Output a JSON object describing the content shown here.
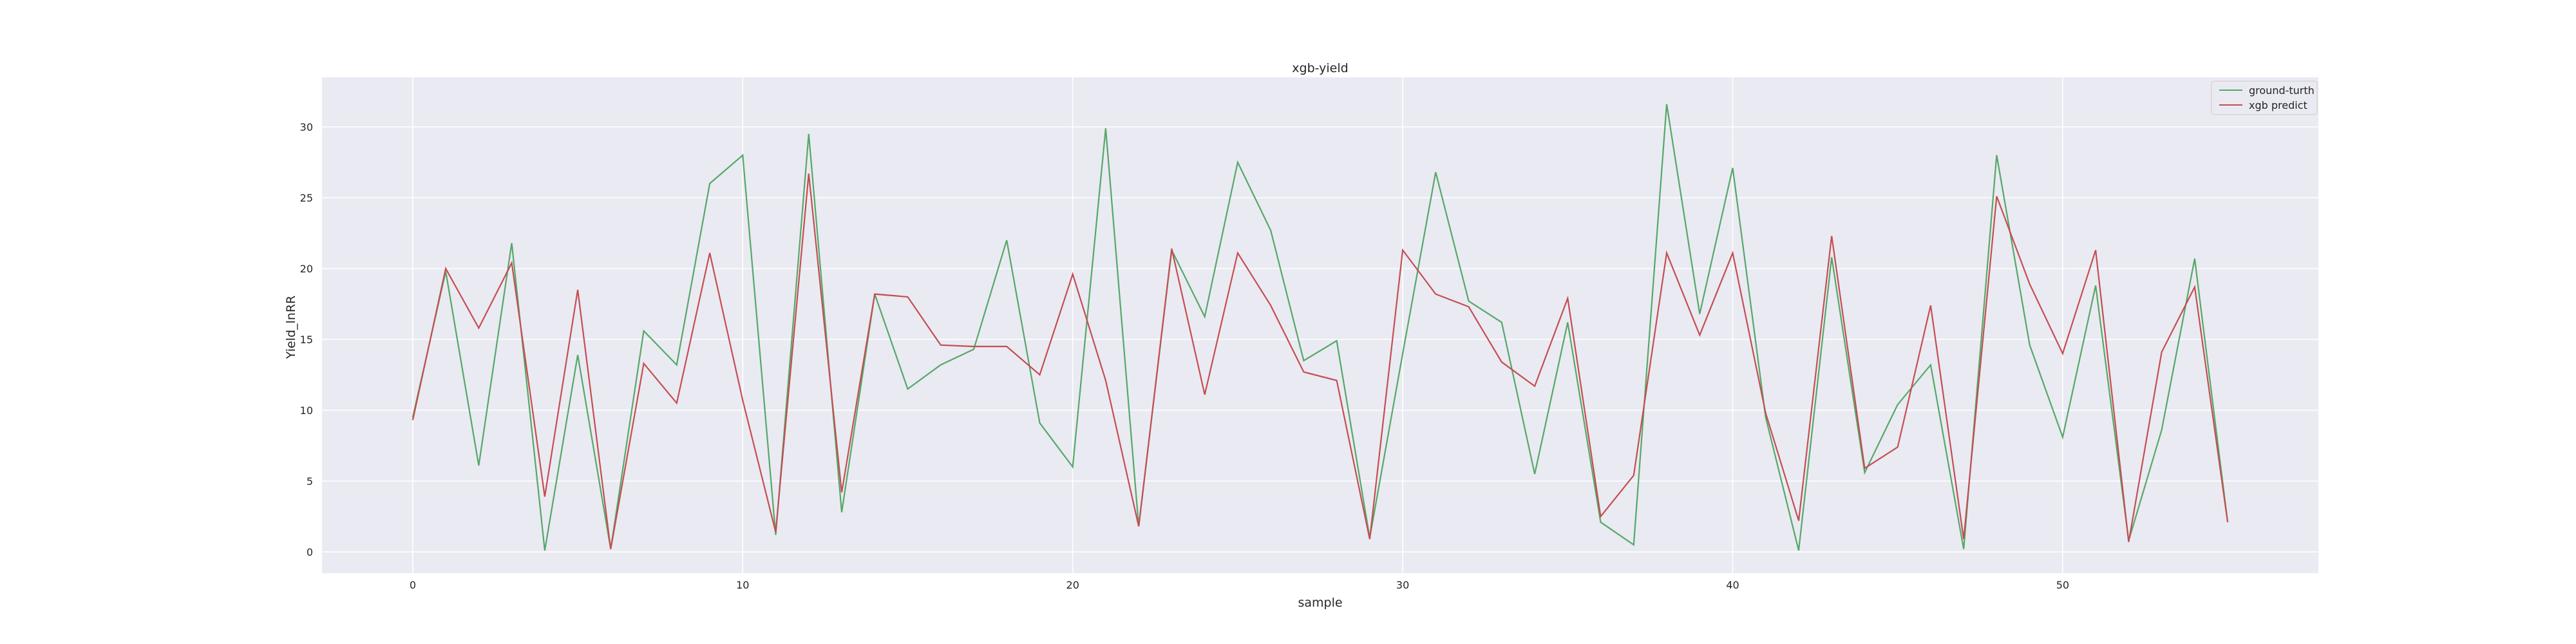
{
  "chart_data": {
    "type": "line",
    "title": "xgb-yield",
    "xlabel": "sample",
    "ylabel": "Yield_lnRR",
    "xlim": [
      -2.75,
      57.75
    ],
    "ylim": [
      -1.5,
      33.5
    ],
    "xticks": [
      0,
      10,
      20,
      30,
      40,
      50
    ],
    "yticks": [
      0,
      5,
      10,
      15,
      20,
      25,
      30
    ],
    "grid": true,
    "legend_position": "top-right",
    "series": [
      {
        "name": "ground-turth",
        "color": "#55a868",
        "values": [
          9.5,
          19.8,
          6.1,
          21.8,
          0.1,
          13.9,
          0.2,
          15.6,
          13.2,
          26.0,
          28.0,
          1.2,
          29.5,
          2.8,
          18.2,
          11.5,
          13.2,
          14.3,
          22.0,
          9.1,
          6.0,
          29.9,
          1.8,
          21.3,
          16.6,
          27.5,
          22.7,
          13.5,
          14.9,
          1.0,
          14.0,
          26.8,
          17.7,
          16.2,
          5.5,
          16.2,
          2.1,
          0.5,
          31.6,
          16.8,
          27.1,
          9.5,
          0.1,
          20.8,
          5.6,
          10.4,
          13.2,
          0.2,
          28.0,
          14.6,
          8.1,
          18.8,
          0.8,
          8.6,
          20.7,
          2.1
        ]
      },
      {
        "name": "xgb predict",
        "color": "#c44e52",
        "values": [
          9.3,
          20.0,
          15.8,
          20.4,
          3.9,
          18.5,
          0.2,
          13.3,
          10.5,
          21.1,
          10.7,
          1.4,
          26.7,
          4.2,
          18.2,
          18.0,
          14.6,
          14.5,
          14.5,
          12.5,
          19.6,
          12.1,
          1.8,
          21.4,
          11.1,
          21.1,
          17.4,
          12.7,
          12.1,
          0.9,
          21.3,
          18.2,
          17.3,
          13.4,
          11.7,
          17.9,
          2.5,
          5.4,
          21.1,
          15.3,
          21.1,
          9.8,
          2.2,
          22.3,
          5.9,
          7.4,
          17.4,
          0.9,
          25.1,
          18.9,
          14.0,
          21.3,
          0.7,
          14.1,
          18.7,
          2.1
        ]
      }
    ]
  },
  "colors": {
    "plot_background": "#eaeaf2",
    "grid": "#ffffff",
    "text": "#262626"
  }
}
